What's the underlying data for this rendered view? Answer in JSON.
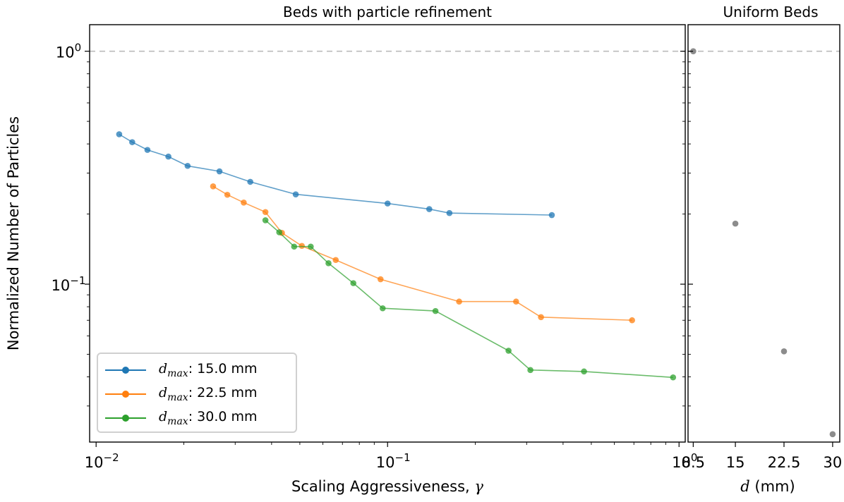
{
  "chart_data": [
    {
      "type": "line",
      "title": "Beds with particle refinement",
      "xlabel": "Scaling Aggressiveness, γ",
      "ylabel": "Normalized Number of Particles",
      "xscale": "log",
      "yscale": "log",
      "xlim": [
        0.0095,
        1.05
      ],
      "ylim": [
        0.021,
        1.3
      ],
      "x_ticks": [
        {
          "value": 0.01,
          "base": "10",
          "exp": "−2"
        },
        {
          "value": 0.1,
          "base": "10",
          "exp": "−1"
        },
        {
          "value": 1,
          "base": "10",
          "exp": "0"
        }
      ],
      "y_ticks": [
        {
          "value": 0.1,
          "base": "10",
          "exp": "−1"
        },
        {
          "value": 1,
          "base": "10",
          "exp": "0"
        }
      ],
      "reference_line": {
        "y": 1.0,
        "style": "dashed",
        "color": "#bbbbbb"
      },
      "legend": {
        "placement": "lower-left",
        "unit": "mm"
      },
      "series": [
        {
          "name": "d_max: 15.0 mm",
          "legend_value": "15.0",
          "color": "#1f77b4",
          "x": [
            0.012,
            0.0133,
            0.015,
            0.0177,
            0.0206,
            0.0265,
            0.0338,
            0.0484,
            0.1,
            0.139,
            0.163,
            0.366
          ],
          "y": [
            0.44,
            0.407,
            0.377,
            0.353,
            0.322,
            0.305,
            0.275,
            0.243,
            0.222,
            0.21,
            0.202,
            0.198
          ]
        },
        {
          "name": "d_max: 22.5 mm",
          "legend_value": "22.5",
          "color": "#ff7f0e",
          "x": [
            0.0252,
            0.0282,
            0.0321,
            0.0381,
            0.0434,
            0.0508,
            0.0664,
            0.0946,
            0.176,
            0.276,
            0.336,
            0.69
          ],
          "y": [
            0.263,
            0.242,
            0.224,
            0.204,
            0.166,
            0.146,
            0.127,
            0.105,
            0.0842,
            0.0842,
            0.0722,
            0.07
          ]
        },
        {
          "name": "d_max: 30.0 mm",
          "legend_value": "30.0",
          "color": "#2ca02c",
          "x": [
            0.0381,
            0.0425,
            0.0478,
            0.0545,
            0.0627,
            0.0763,
            0.0962,
            0.146,
            0.26,
            0.309,
            0.472,
            0.954
          ],
          "y": [
            0.188,
            0.167,
            0.145,
            0.145,
            0.123,
            0.101,
            0.0788,
            0.0767,
            0.0518,
            0.0428,
            0.0422,
            0.0398
          ]
        }
      ]
    },
    {
      "type": "scatter",
      "title": "Uniform Beds",
      "xlabel": "d (mm)",
      "yscale": "log",
      "xlim": [
        7.7,
        31.1
      ],
      "ylim": [
        0.021,
        1.3
      ],
      "x_ticks": [
        {
          "value": 8.5,
          "label": "8.5"
        },
        {
          "value": 15,
          "label": "15"
        },
        {
          "value": 22.5,
          "label": "22.5"
        },
        {
          "value": 30,
          "label": "30"
        }
      ],
      "reference_line": {
        "y": 1.0,
        "style": "dashed",
        "color": "#bbbbbb"
      },
      "series": [
        {
          "color": "#7f7f7f",
          "x": [
            8.5,
            15,
            22.5,
            30
          ],
          "y": [
            1.0,
            0.182,
            0.0515,
            0.0227
          ]
        }
      ]
    }
  ]
}
